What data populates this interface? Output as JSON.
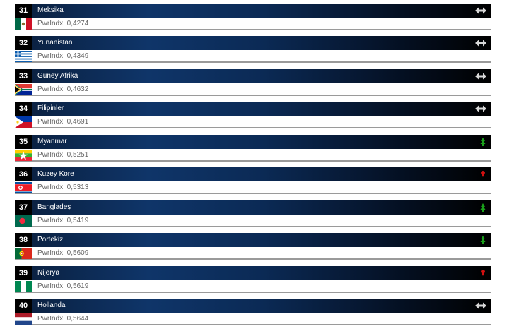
{
  "rankings": [
    {
      "rank": "31",
      "country": "Meksika",
      "power_index": "PwrIndx: 0,4274",
      "trend": "unchanged",
      "flag": "mexico-flag-icon"
    },
    {
      "rank": "32",
      "country": "Yunanistan",
      "power_index": "PwrIndx: 0,4349",
      "trend": "unchanged",
      "flag": "greece-flag-icon"
    },
    {
      "rank": "33",
      "country": "Güney Afrika",
      "power_index": "PwrIndx: 0,4632",
      "trend": "unchanged",
      "flag": "south-africa-flag-icon"
    },
    {
      "rank": "34",
      "country": "Filipinler",
      "power_index": "PwrIndx: 0,4691",
      "trend": "unchanged",
      "flag": "philippines-flag-icon"
    },
    {
      "rank": "35",
      "country": "Myanmar",
      "power_index": "PwrIndx: 0,5251",
      "trend": "up",
      "flag": "myanmar-flag-icon"
    },
    {
      "rank": "36",
      "country": "Kuzey Kore",
      "power_index": "PwrIndx: 0,5313",
      "trend": "down",
      "flag": "north-korea-flag-icon"
    },
    {
      "rank": "37",
      "country": "Bangladeş",
      "power_index": "PwrIndx: 0,5419",
      "trend": "up",
      "flag": "bangladesh-flag-icon"
    },
    {
      "rank": "38",
      "country": "Portekiz",
      "power_index": "PwrIndx: 0,5609",
      "trend": "up",
      "flag": "portugal-flag-icon"
    },
    {
      "rank": "39",
      "country": "Nijerya",
      "power_index": "PwrIndx: 0,5619",
      "trend": "down",
      "flag": "nigeria-flag-icon"
    },
    {
      "rank": "40",
      "country": "Hollanda",
      "power_index": "PwrIndx: 0,5644",
      "trend": "unchanged",
      "flag": "netherlands-flag-icon"
    }
  ],
  "colors": {
    "up": "#1aa01a",
    "down": "#d01010",
    "unchanged": "#d8d8d8"
  }
}
